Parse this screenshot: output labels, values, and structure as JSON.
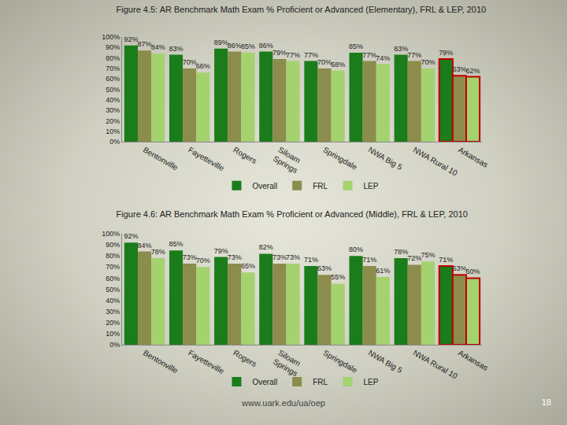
{
  "chart_data": [
    {
      "type": "bar",
      "title": "Figure 4.5: AR Benchmark Math Exam % Proficient or Advanced (Elementary), FRL & LEP, 2010",
      "categories": [
        "Bentonville",
        "Fayetteville",
        "Rogers",
        "Siloam Springs",
        "Springdale",
        "NWA Big 5",
        "NWA Rural 10",
        "Arkansas"
      ],
      "series": [
        {
          "name": "Overall",
          "color": "#1b7c1b",
          "values": [
            92,
            83,
            89,
            86,
            77,
            85,
            83,
            79
          ],
          "value_labels": [
            "92%",
            "83%",
            "89%",
            "86%",
            "77%",
            "85%",
            "83%",
            "79%"
          ]
        },
        {
          "name": "FRL",
          "color": "#8c8c4c",
          "values": [
            87,
            70,
            86,
            79,
            70,
            77,
            77,
            63
          ],
          "value_labels": [
            "87%",
            "70%",
            "86%",
            "79%",
            "70%",
            "77%",
            "77%",
            "63%"
          ]
        },
        {
          "name": "LEP",
          "color": "#a3d26f",
          "values": [
            84,
            66,
            85,
            77,
            68,
            74,
            70,
            62
          ],
          "value_labels": [
            "84%",
            "66%",
            "85%",
            "77%",
            "68%",
            "74%",
            "70%",
            "62%"
          ]
        }
      ],
      "ylim": [
        0,
        100
      ],
      "yticks": [
        {
          "value": 0,
          "label": "0%"
        },
        {
          "value": 10,
          "label": "10%"
        },
        {
          "value": 20,
          "label": "20%"
        },
        {
          "value": 30,
          "label": "30%"
        },
        {
          "value": 40,
          "label": "40%"
        },
        {
          "value": 50,
          "label": "50%"
        },
        {
          "value": 60,
          "label": "60%"
        },
        {
          "value": 70,
          "label": "70%"
        },
        {
          "value": 80,
          "label": "80%"
        },
        {
          "value": 90,
          "label": "90%"
        },
        {
          "value": 100,
          "label": "100%"
        }
      ],
      "grid": false,
      "legend": "bottom",
      "data_labels": true
    },
    {
      "type": "bar",
      "title": "Figure 4.6: AR Benchmark Math Exam % Proficient or Advanced (Middle), FRL & LEP, 2010",
      "categories": [
        "Bentonville",
        "Fayetteville",
        "Rogers",
        "Siloam Springs",
        "Springdale",
        "NWA Big 5",
        "NWA Rural 10",
        "Arkansas"
      ],
      "series": [
        {
          "name": "Overall",
          "color": "#1b7c1b",
          "values": [
            92,
            85,
            79,
            82,
            71,
            80,
            78,
            71
          ],
          "value_labels": [
            "92%",
            "85%",
            "79%",
            "82%",
            "71%",
            "80%",
            "78%",
            "71%"
          ]
        },
        {
          "name": "FRL",
          "color": "#8c8c4c",
          "values": [
            84,
            73,
            73,
            73,
            63,
            71,
            72,
            63
          ],
          "value_labels": [
            "84%",
            "73%",
            "73%",
            "73%",
            "63%",
            "71%",
            "72%",
            "63%"
          ]
        },
        {
          "name": "LEP",
          "color": "#a3d26f",
          "values": [
            78,
            70,
            65,
            73,
            55,
            61,
            75,
            60
          ],
          "value_labels": [
            "78%",
            "70%",
            "65%",
            "73%",
            "55%",
            "61%",
            "75%",
            "60%"
          ]
        }
      ],
      "ylim": [
        0,
        100
      ],
      "yticks": [
        {
          "value": 0,
          "label": "0%"
        },
        {
          "value": 10,
          "label": "10%"
        },
        {
          "value": 20,
          "label": "20%"
        },
        {
          "value": 30,
          "label": "30%"
        },
        {
          "value": 40,
          "label": "40%"
        },
        {
          "value": 50,
          "label": "50%"
        },
        {
          "value": 60,
          "label": "60%"
        },
        {
          "value": 70,
          "label": "70%"
        },
        {
          "value": 80,
          "label": "80%"
        },
        {
          "value": 90,
          "label": "90%"
        },
        {
          "value": 100,
          "label": "100%"
        }
      ],
      "grid": false,
      "legend": "bottom",
      "data_labels": true
    }
  ],
  "footer": {
    "url": "www.uark.edu/ua/oep",
    "page": "18"
  }
}
